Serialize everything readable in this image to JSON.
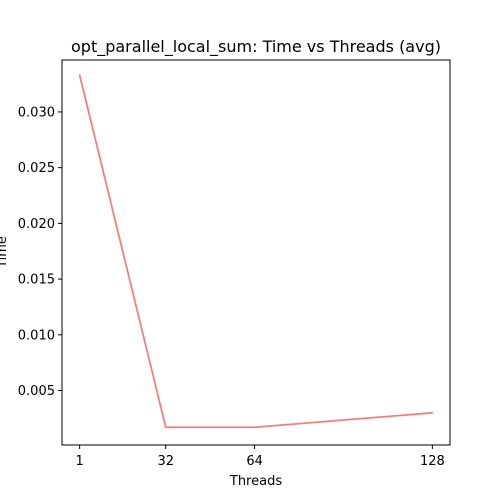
{
  "chart_data": {
    "type": "line",
    "title": "opt_parallel_local_sum: Time vs Threads (avg)",
    "xlabel": "Threads",
    "ylabel": "Time",
    "x": [
      1,
      32,
      64,
      128
    ],
    "xticks": [
      1,
      32,
      64,
      128
    ],
    "yticks": [
      0.005,
      0.01,
      0.015,
      0.02,
      0.025,
      0.03
    ],
    "ytick_labels": [
      "0.005",
      "0.010",
      "0.015",
      "0.020",
      "0.025",
      "0.030"
    ],
    "xlim": [
      -5.35,
      134.35
    ],
    "ylim": [
      0.00011,
      0.03466
    ],
    "grid": false,
    "series": [
      {
        "values": [
          0.0333,
          0.0017,
          0.0017,
          0.003
        ],
        "color": "#f08080"
      }
    ]
  }
}
